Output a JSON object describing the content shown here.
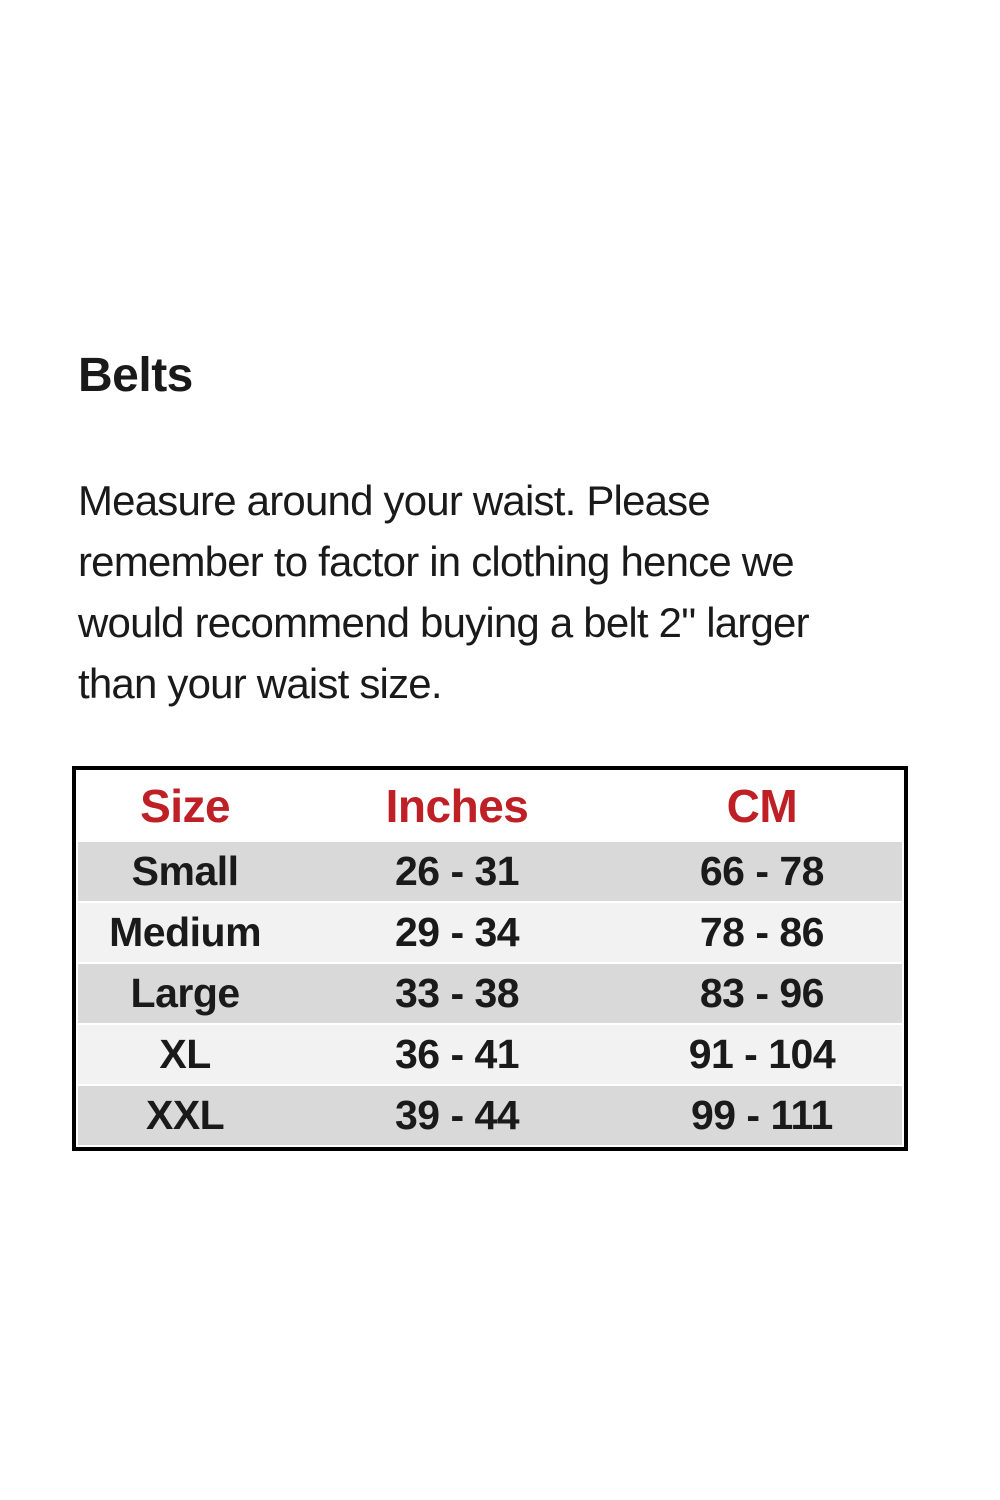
{
  "page": {
    "title": "Belts",
    "intro_lines": [
      "Measure around your waist. Please",
      "remember to factor in clothing hence we",
      "would recommend buying a belt 2\" larger",
      "than your waist size."
    ]
  },
  "chart_data": {
    "type": "table",
    "columns": [
      "Size",
      "Inches",
      "CM"
    ],
    "rows": [
      [
        "Small",
        "26 - 31",
        "66 - 78"
      ],
      [
        "Medium",
        "29 - 34",
        "78 - 86"
      ],
      [
        "Large",
        "33 - 38",
        "83 - 96"
      ],
      [
        "XL",
        "36 - 41",
        "91 - 104"
      ],
      [
        "XXL",
        "39 - 44",
        "99 - 111"
      ]
    ]
  },
  "colors": {
    "header_text": "#BE2026",
    "row_stripe_dark": "#D9D9D9",
    "row_stripe_light": "#F2F2F2",
    "table_border": "#000000",
    "body_text": "#1A1A1A"
  }
}
